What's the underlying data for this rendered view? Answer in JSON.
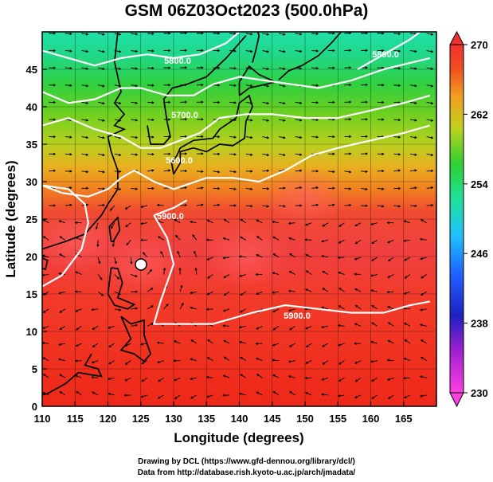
{
  "figure": {
    "title": "GSM 06Z03Oct2023 (500.0hPa)",
    "xlabel": "Longitude (degrees)",
    "ylabel": "Latitude  (degrees)",
    "x_ticks": [
      "110",
      "115",
      "120",
      "125",
      "130",
      "135",
      "140",
      "145",
      "150",
      "155",
      "160",
      "165"
    ],
    "y_ticks": [
      "0",
      "5",
      "10",
      "15",
      "20",
      "25",
      "30",
      "35",
      "40",
      "45"
    ],
    "colorbar_ticks": [
      "270",
      "262",
      "254",
      "246",
      "238",
      "230"
    ],
    "contour_labels": [
      "5800.0",
      "5700.0",
      "5600.0",
      "5900.0",
      "5900.0",
      "5800.0"
    ],
    "credit_line_1": "Drawing by DCL (https://www.gfd-dennou.org/library/dcl/)",
    "credit_line_2": "Data from http://database.rish.kyoto-u.ac.jp/arch/jmadata/"
  },
  "map": {
    "lon_range": [
      110,
      170
    ],
    "lat_range": [
      0,
      50
    ],
    "contour_interval_m": 100,
    "colors": {
      "cold": "#ff40c0",
      "warm_red": "#ee2222",
      "contour": "#ffffff",
      "coast": "#000000",
      "streamline": "#000000"
    },
    "colorbar_range_K": [
      230,
      270
    ]
  },
  "chart_data": {
    "type": "heatmap",
    "title": "GSM 06Z03Oct2023 (500.0hPa)",
    "xlabel": "Longitude (degrees)",
    "ylabel": "Latitude  (degrees)",
    "xlim": [
      110,
      170
    ],
    "ylim": [
      0,
      50
    ],
    "colorbar_lim": [
      230,
      270
    ],
    "colorbar_ticks": [
      230,
      238,
      246,
      254,
      262,
      270
    ],
    "grid": true,
    "contours_m": [
      {
        "label": "5600.0",
        "points": [
          [
            110,
            37.5
          ],
          [
            114,
            38.5
          ],
          [
            118,
            37
          ],
          [
            122,
            36
          ],
          [
            125,
            34.5
          ],
          [
            128,
            34.5
          ],
          [
            131,
            35.5
          ],
          [
            134,
            36.5
          ],
          [
            137,
            38.5
          ],
          [
            141,
            39
          ],
          [
            145,
            39
          ],
          [
            150,
            38.5
          ],
          [
            155,
            38.5
          ],
          [
            160,
            39.5
          ],
          [
            165,
            40.5
          ],
          [
            169,
            41.5
          ]
        ]
      },
      {
        "label": "5700.0",
        "points": [
          [
            110,
            42
          ],
          [
            114,
            40.5
          ],
          [
            118,
            41
          ],
          [
            122,
            42.5
          ],
          [
            125,
            42.5
          ],
          [
            129,
            41.5
          ],
          [
            133,
            41.5
          ],
          [
            136,
            43
          ],
          [
            140,
            44
          ],
          [
            144,
            43.5
          ],
          [
            148,
            43
          ],
          [
            152,
            42.5
          ],
          [
            157,
            43.5
          ],
          [
            162,
            45
          ],
          [
            169,
            46.5
          ]
        ]
      },
      {
        "label": "5800.0",
        "points": [
          [
            110,
            47.5
          ],
          [
            114,
            46.5
          ],
          [
            118,
            45.5
          ],
          [
            122,
            46.5
          ],
          [
            126,
            47
          ],
          [
            130,
            46.5
          ],
          [
            134,
            47
          ],
          [
            138,
            48.5
          ],
          [
            140,
            50
          ]
        ]
      },
      {
        "label": "5800.0",
        "points": [
          [
            158,
            45
          ],
          [
            162,
            47
          ],
          [
            166,
            49
          ],
          [
            167.5,
            50
          ]
        ]
      },
      {
        "label": "5900.0",
        "points": [
          [
            110,
            29.5
          ],
          [
            113,
            28.5
          ],
          [
            117,
            28
          ],
          [
            120,
            29
          ],
          [
            122,
            30.5
          ],
          [
            124,
            31.5
          ],
          [
            127,
            30
          ],
          [
            130,
            29
          ],
          [
            135,
            30.5
          ],
          [
            139,
            30.5
          ],
          [
            143,
            30
          ],
          [
            147,
            31.5
          ],
          [
            151,
            33.5
          ],
          [
            155,
            34.5
          ],
          [
            160,
            35.5
          ],
          [
            165,
            36.5
          ],
          [
            169,
            37.5
          ]
        ]
      },
      {
        "label": "5900.0",
        "points": [
          [
            110,
            16
          ],
          [
            113,
            17.5
          ],
          [
            116,
            21
          ],
          [
            117,
            24.5
          ],
          [
            116.5,
            27
          ],
          [
            114,
            29
          ],
          [
            110,
            29.5
          ]
        ]
      },
      {
        "label": "5900.0",
        "points": [
          [
            127,
            25.5
          ],
          [
            129,
            22.5
          ],
          [
            130,
            19
          ],
          [
            128,
            14
          ],
          [
            127,
            11
          ],
          [
            130,
            11
          ],
          [
            136,
            11
          ],
          [
            142,
            12.5
          ],
          [
            147,
            13.5
          ],
          [
            152,
            13
          ],
          [
            157,
            12.5
          ],
          [
            162,
            12.5
          ],
          [
            166,
            13.5
          ],
          [
            169,
            14
          ]
        ]
      },
      {
        "label": "5900.0",
        "points": [
          [
            127,
            25.5
          ],
          [
            130,
            26.5
          ],
          [
            132,
            27.5
          ]
        ]
      }
    ],
    "warm_blobs_K": [
      {
        "lon": 115,
        "lat": 22,
        "value": 268
      },
      {
        "lon": 150,
        "lat": 28,
        "value": 267
      },
      {
        "lon": 141,
        "lat": 20,
        "value": 268
      },
      {
        "lon": 125,
        "lat": 19,
        "value": 269
      }
    ]
  }
}
